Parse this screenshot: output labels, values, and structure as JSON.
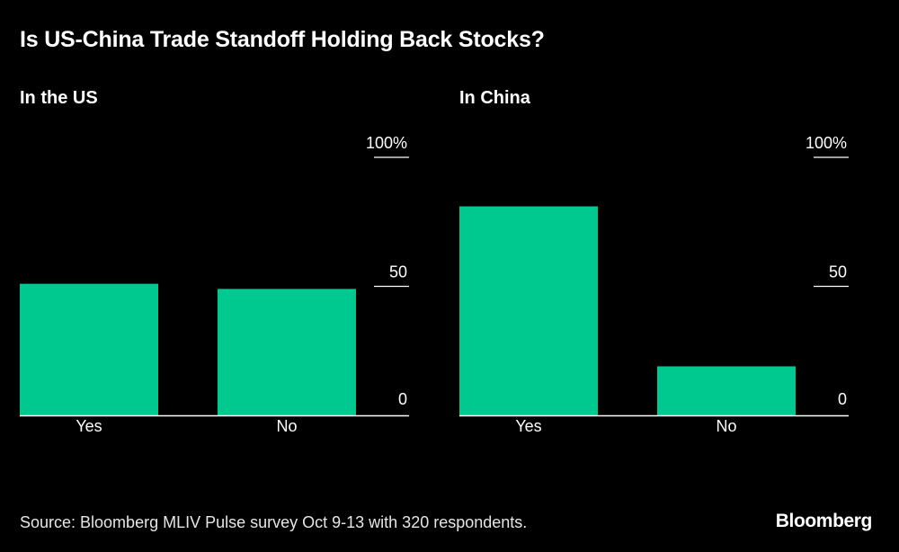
{
  "title": "Is US-China Trade Standoff Holding Back Stocks?",
  "source": "Source: Bloomberg MLIV Pulse survey Oct 9-13 with 320 respondents.",
  "logo": "Bloomberg",
  "colors": {
    "bar": "#00c98f",
    "background": "#000000",
    "text": "#ffffff",
    "axis": "#ffffff"
  },
  "chart_data": [
    {
      "type": "bar",
      "title": "In the US",
      "categories": [
        "Yes",
        "No"
      ],
      "values": [
        51,
        49
      ],
      "ylim": [
        0,
        100
      ],
      "yticks": [
        0,
        50,
        100
      ],
      "ytick_labels": [
        "0",
        "50",
        "100%"
      ],
      "xlabel": "",
      "ylabel": "",
      "grid": false
    },
    {
      "type": "bar",
      "title": "In China",
      "categories": [
        "Yes",
        "No"
      ],
      "values": [
        81,
        19
      ],
      "ylim": [
        0,
        100
      ],
      "yticks": [
        0,
        50,
        100
      ],
      "ytick_labels": [
        "0",
        "50",
        "100%"
      ],
      "xlabel": "",
      "ylabel": "",
      "grid": false
    }
  ]
}
